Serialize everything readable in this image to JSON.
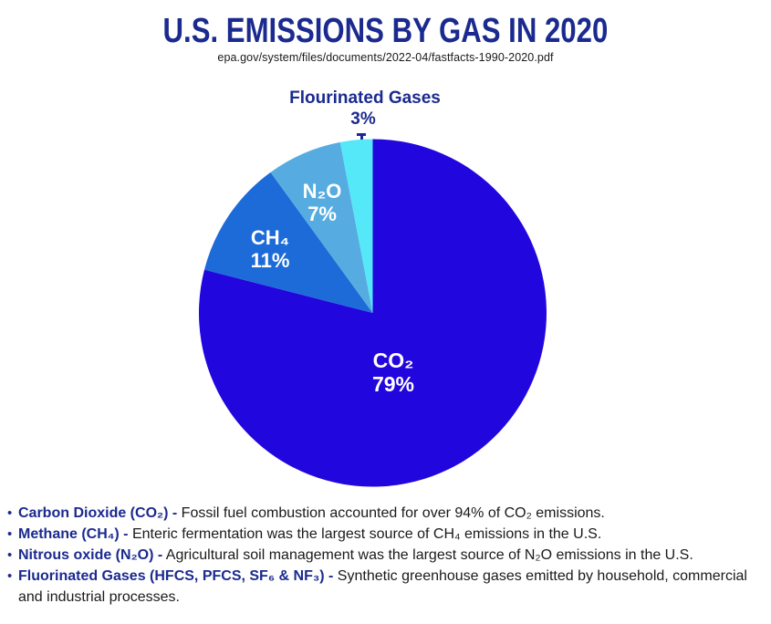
{
  "header": {
    "title": "U.S. EMISSIONS BY GAS IN 2020",
    "source": "epa.gov/system/files/documents/2022-04/fastfacts-1990-2020.pdf"
  },
  "chart_data": {
    "type": "pie",
    "title": "U.S. Emissions by Gas in 2020",
    "unit": "percent",
    "start_angle_deg": 0,
    "direction": "clockwise",
    "slices": [
      {
        "key": "co2",
        "label": "CO₂",
        "value_pct": 79,
        "pct_label": "79%",
        "color": "#2206DE"
      },
      {
        "key": "ch4",
        "label": "CH₄",
        "value_pct": 11,
        "pct_label": "11%",
        "color": "#1C6BD8"
      },
      {
        "key": "n2o",
        "label": "N₂O",
        "value_pct": 7,
        "pct_label": "7%",
        "color": "#56ACE0"
      },
      {
        "key": "fgas",
        "label": "Flourinated Gases",
        "value_pct": 3,
        "pct_label": "3%",
        "color": "#55E8F8"
      }
    ]
  },
  "bullets": [
    {
      "marker": "•",
      "lead": "Carbon Dioxide (CO₂) -",
      "text": " Fossil fuel combustion accounted for over 94% of CO₂ emissions."
    },
    {
      "marker": "•",
      "lead": "Methane (CH₄) -",
      "text": " Enteric fermentation was the largest source of CH₄ emissions in the U.S."
    },
    {
      "marker": "•",
      "lead": "Nitrous oxide (N₂O) -",
      "text": " Agricultural soil management was the largest source of N₂O emissions in the U.S."
    },
    {
      "marker": "•",
      "lead": "Fluorinated Gases (HFCS, PFCS, SF₆ & NF₃) -",
      "text": " Synthetic greenhouse gases emitted by household, commercial and industrial processes."
    }
  ],
  "colors": {
    "heading_navy": "#1B2A8F",
    "body_text": "#1A1A1A",
    "co2_blue": "#2206DE",
    "ch4_blue": "#1C6BD8",
    "n2o_blue": "#56ACE0",
    "fgas_cyan": "#55E8F8"
  }
}
